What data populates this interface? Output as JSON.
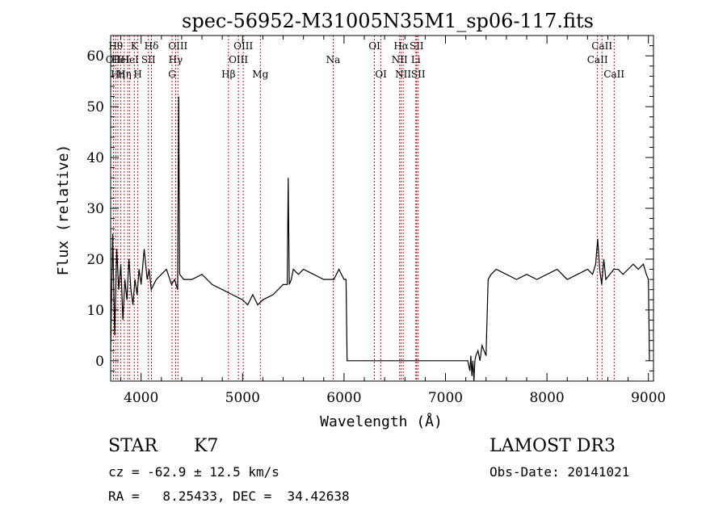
{
  "chart_data": {
    "type": "line",
    "title": "spec-56952-M31005N35M1_sp06-117.fits",
    "xlabel": "Wavelength (Å)",
    "ylabel": "Flux (relative)",
    "xlim": [
      3700,
      9050
    ],
    "ylim": [
      -4,
      64
    ],
    "xticks": [
      4000,
      5000,
      6000,
      7000,
      8000,
      9000
    ],
    "yticks": [
      0,
      10,
      20,
      30,
      40,
      50,
      60
    ],
    "grid": false,
    "series": [
      {
        "name": "spectrum",
        "x": [
          3700,
          3720,
          3740,
          3760,
          3780,
          3800,
          3820,
          3840,
          3860,
          3880,
          3900,
          3920,
          3940,
          3960,
          3980,
          4000,
          4030,
          4060,
          4080,
          4100,
          4150,
          4200,
          4250,
          4300,
          4330,
          4360,
          4370,
          4380,
          4420,
          4500,
          4600,
          4700,
          4800,
          4900,
          5000,
          5050,
          5100,
          5150,
          5200,
          5300,
          5400,
          5440,
          5450,
          5460,
          5480,
          5500,
          5550,
          5600,
          5700,
          5800,
          5900,
          5950,
          6000,
          6020,
          6030,
          6040,
          6100,
          6500,
          7000,
          7100,
          7200,
          7220,
          7240,
          7250,
          7260,
          7270,
          7280,
          7290,
          7300,
          7320,
          7340,
          7360,
          7380,
          7400,
          7420,
          7450,
          7500,
          7600,
          7700,
          7800,
          7900,
          8000,
          8100,
          8200,
          8300,
          8400,
          8450,
          8480,
          8500,
          8520,
          8540,
          8560,
          8580,
          8620,
          8660,
          8700,
          8750,
          8800,
          8850,
          8900,
          8950,
          8980,
          9000,
          9010
        ],
        "y": [
          2,
          25,
          5,
          22,
          14,
          19,
          8,
          16,
          12,
          20,
          14,
          11,
          16,
          13,
          18,
          15,
          22,
          16,
          18,
          14,
          16,
          17,
          18,
          15,
          16,
          14,
          52,
          17,
          16,
          16,
          17,
          15,
          14,
          13,
          12,
          11,
          13,
          11,
          12,
          13,
          15,
          15,
          36,
          15,
          16,
          18,
          17,
          18,
          17,
          16,
          16,
          18,
          16,
          16,
          0,
          0,
          0,
          0,
          0,
          0,
          0,
          0,
          -2,
          1,
          -3,
          0,
          -4,
          0,
          1,
          2,
          0,
          3,
          2,
          1,
          16,
          17,
          18,
          17,
          16,
          17,
          16,
          17,
          18,
          16,
          17,
          18,
          17,
          19,
          24,
          18,
          15,
          20,
          16,
          17,
          18,
          18,
          17,
          18,
          19,
          18,
          19,
          17,
          16,
          0
        ]
      }
    ],
    "line_groups": [
      {
        "x": 3727,
        "label": "OII",
        "row": 1
      },
      {
        "x": 3750,
        "label": "Hθ",
        "row": 0
      },
      {
        "x": 3771,
        "label": "Hη",
        "row": 2
      },
      {
        "x": 3798,
        "label": "HeI",
        "row": 1
      },
      {
        "x": 3834,
        "label": "Hη",
        "row": 2
      },
      {
        "x": 3869,
        "label": "",
        "row": 1
      },
      {
        "x": 3889,
        "label": "HeI",
        "row": 1
      },
      {
        "x": 3933,
        "label": "K",
        "row": 0
      },
      {
        "x": 3968,
        "label": "H",
        "row": 2
      },
      {
        "x": 4072,
        "label": "SII",
        "row": 1
      },
      {
        "x": 4102,
        "label": "Hδ",
        "row": 0
      },
      {
        "x": 4305,
        "label": "G",
        "row": 2
      },
      {
        "x": 4340,
        "label": "Hγ",
        "row": 1
      },
      {
        "x": 4363,
        "label": "OIII",
        "row": 0
      },
      {
        "x": 4861,
        "label": "Hβ",
        "row": 2
      },
      {
        "x": 4959,
        "label": "OIII",
        "row": 1
      },
      {
        "x": 5007,
        "label": "OIII",
        "row": 0
      },
      {
        "x": 5175,
        "label": "Mg",
        "row": 2
      },
      {
        "x": 5893,
        "label": "Na",
        "row": 1
      },
      {
        "x": 6300,
        "label": "OI",
        "row": 0
      },
      {
        "x": 6364,
        "label": "OI",
        "row": 2
      },
      {
        "x": 6548,
        "label": "NII",
        "row": 1
      },
      {
        "x": 6563,
        "label": "Hα",
        "row": 0
      },
      {
        "x": 6583,
        "label": "NII",
        "row": 2
      },
      {
        "x": 6708,
        "label": "Li",
        "row": 1
      },
      {
        "x": 6716,
        "label": "SII",
        "row": 0
      },
      {
        "x": 6731,
        "label": "SII",
        "row": 2
      },
      {
        "x": 8498,
        "label": "CaII",
        "row": 1
      },
      {
        "x": 8542,
        "label": "CaII",
        "row": 0
      },
      {
        "x": 8662,
        "label": "CaII",
        "row": 2
      }
    ]
  },
  "footer": {
    "object_class": "STAR",
    "subclass": "K7",
    "survey": "LAMOST DR3",
    "redshift_line": "cz = -62.9 ± 12.5 km/s",
    "obs_date_line": "Obs-Date: 20141021",
    "coords_line": "RA =   8.25433, DEC =  34.42638"
  },
  "colors": {
    "axis": "#000000",
    "spectrum": "#000000",
    "line_marker": "#c00000"
  }
}
